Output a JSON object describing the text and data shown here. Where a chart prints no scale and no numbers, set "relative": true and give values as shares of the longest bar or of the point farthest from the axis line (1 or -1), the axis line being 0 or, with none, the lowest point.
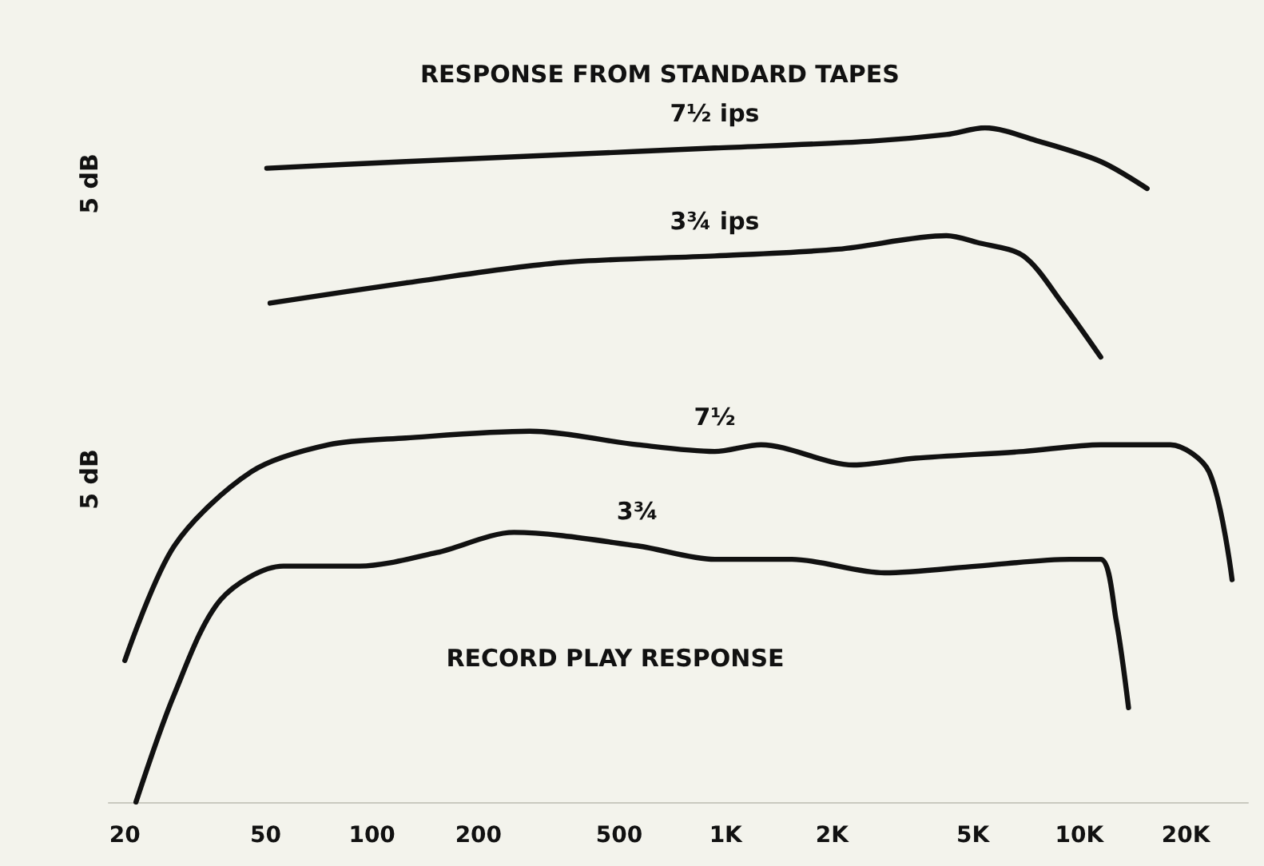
{
  "chart_data": {
    "type": "line",
    "title": "RESPONSE FROM STANDARD TAPES",
    "relative": true,
    "log": "x",
    "grid": false,
    "legend": false,
    "marker": "none",
    "line_style": "solid",
    "xlim": [
      18,
      30000
    ],
    "xticks": [
      {
        "value": 20,
        "label": "20"
      },
      {
        "value": 50,
        "label": "50"
      },
      {
        "value": 100,
        "label": "100"
      },
      {
        "value": 200,
        "label": "200"
      },
      {
        "value": 500,
        "label": "500"
      },
      {
        "value": 1000,
        "label": "1K"
      },
      {
        "value": 2000,
        "label": "2K"
      },
      {
        "value": 5000,
        "label": "5K"
      },
      {
        "value": 10000,
        "label": "10K"
      },
      {
        "value": 20000,
        "label": "20K"
      }
    ],
    "annotations": [
      "5 dB",
      "5 dB",
      "RECORD PLAY RESPONSE"
    ],
    "series": [
      {
        "name": "7½ ips",
        "color": "#111111",
        "x": [
          50.4,
          124.6,
          341,
          931,
          2547,
          4209,
          5411,
          7688,
          11500,
          15550
        ],
        "values": [
          0.94,
          0.95,
          0.96,
          0.97,
          0.98,
          0.99,
          1,
          0.98,
          0.95,
          0.91
        ]
      },
      {
        "name": "3¾ ips",
        "color": "#111111",
        "x": [
          51.5,
          124.6,
          341,
          931,
          2082,
          4209,
          5146,
          6951,
          8948,
          11500
        ],
        "values": [
          0.74,
          0.77,
          0.8,
          0.81,
          0.82,
          0.84,
          0.83,
          0.81,
          0.74,
          0.66
        ]
      },
      {
        "name": "7½",
        "color": "#111111",
        "x": [
          20,
          27.6,
          45.6,
          75.4,
          124.6,
          279,
          563,
          931,
          1259,
          2303,
          3443,
          6951,
          11500,
          18090,
          23270,
          27040
        ],
        "values": [
          0.21,
          0.38,
          0.49,
          0.53,
          0.54,
          0.55,
          0.53,
          0.52,
          0.53,
          0.5,
          0.51,
          0.52,
          0.53,
          0.53,
          0.49,
          0.33
        ]
      },
      {
        "name": "3¾",
        "color": "#111111",
        "x": [
          21.5,
          27.6,
          37.3,
          56.1,
          92.2,
          152.5,
          252,
          563,
          931,
          1539,
          2815,
          5146,
          9400,
          11500,
          12710,
          13780
        ],
        "values": [
          0,
          0.16,
          0.3,
          0.35,
          0.35,
          0.37,
          0.4,
          0.38,
          0.36,
          0.36,
          0.34,
          0.35,
          0.36,
          0.36,
          0.27,
          0.14
        ]
      }
    ]
  }
}
